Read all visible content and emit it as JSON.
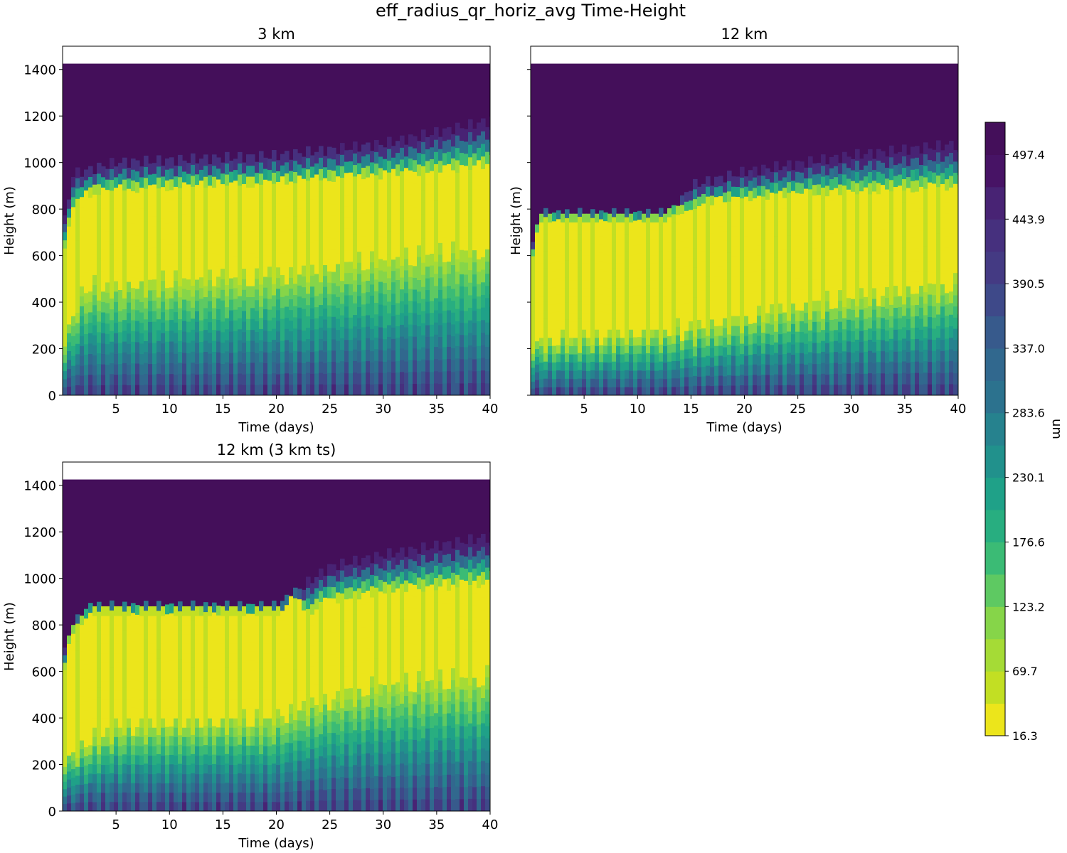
{
  "figure": {
    "suptitle": "eff_radius_qr_horiz_avg Time-Height"
  },
  "chart_data": [
    {
      "type": "heatmap",
      "title": "3 km",
      "xlabel": "Time (days)",
      "ylabel": "Height (m)",
      "xlim": [
        0,
        40
      ],
      "ylim": [
        0,
        1500
      ],
      "xticks": [
        5,
        10,
        15,
        20,
        25,
        30,
        35,
        40
      ],
      "yticks": [
        0,
        200,
        400,
        600,
        800,
        1000,
        1200,
        1400
      ],
      "show_ytick_labels": true,
      "show_xlabel": true,
      "data_top_m": 1425,
      "cloud_top_m": [
        [
          0,
          500
        ],
        [
          0.3,
          700
        ],
        [
          1,
          800
        ],
        [
          2,
          860
        ],
        [
          3,
          880
        ],
        [
          10,
          900
        ],
        [
          20,
          920
        ],
        [
          30,
          950
        ],
        [
          40,
          990
        ]
      ],
      "dry_top_m": [
        [
          0,
          700
        ],
        [
          1,
          950
        ],
        [
          5,
          1000
        ],
        [
          20,
          1030
        ],
        [
          30,
          1080
        ],
        [
          40,
          1180
        ]
      ],
      "moist_bottom_m": [
        [
          0,
          250
        ],
        [
          2,
          480
        ],
        [
          20,
          540
        ],
        [
          30,
          600
        ],
        [
          40,
          640
        ]
      ],
      "cycles": 37
    },
    {
      "type": "heatmap",
      "title": "12 km",
      "xlabel": "Time (days)",
      "ylabel": "Height (m)",
      "xlim": [
        0,
        40
      ],
      "ylim": [
        0,
        1500
      ],
      "xticks": [
        5,
        10,
        15,
        20,
        25,
        30,
        35,
        40
      ],
      "yticks": [
        0,
        200,
        400,
        600,
        800,
        1000,
        1200,
        1400
      ],
      "show_ytick_labels": false,
      "show_xlabel": true,
      "data_top_m": 1425,
      "cloud_top_m": [
        [
          0,
          450
        ],
        [
          0.3,
          680
        ],
        [
          1,
          760
        ],
        [
          12.9,
          760
        ],
        [
          13,
          790
        ],
        [
          15,
          800
        ],
        [
          16,
          830
        ],
        [
          25,
          870
        ],
        [
          40,
          900
        ]
      ],
      "dry_top_m": [
        [
          0,
          600
        ],
        [
          1,
          780
        ],
        [
          13,
          780
        ],
        [
          14,
          830
        ],
        [
          15,
          900
        ],
        [
          20,
          960
        ],
        [
          30,
          1030
        ],
        [
          40,
          1080
        ]
      ],
      "moist_bottom_m": [
        [
          0,
          250
        ],
        [
          10,
          280
        ],
        [
          17,
          320
        ],
        [
          25,
          400
        ],
        [
          40,
          500
        ]
      ],
      "cycles": 37
    },
    {
      "type": "heatmap",
      "title": "12 km (3 km ts)",
      "xlabel": "Time (days)",
      "ylabel": "Height (m)",
      "xlim": [
        0,
        40
      ],
      "ylim": [
        0,
        1500
      ],
      "xticks": [
        5,
        10,
        15,
        20,
        25,
        30,
        35,
        40
      ],
      "yticks": [
        0,
        200,
        400,
        600,
        800,
        1000,
        1200,
        1400
      ],
      "show_ytick_labels": true,
      "show_xlabel": true,
      "data_top_m": 1425,
      "cloud_top_m": [
        [
          0,
          450
        ],
        [
          0.3,
          700
        ],
        [
          1,
          780
        ],
        [
          2,
          830
        ],
        [
          2.5,
          860
        ],
        [
          20.9,
          860
        ],
        [
          21,
          900
        ],
        [
          22,
          910
        ],
        [
          23,
          840
        ],
        [
          24,
          900
        ],
        [
          30,
          950
        ],
        [
          40,
          990
        ]
      ],
      "dry_top_m": [
        [
          0,
          650
        ],
        [
          1,
          800
        ],
        [
          2.5,
          880
        ],
        [
          20,
          880
        ],
        [
          22,
          950
        ],
        [
          25,
          1050
        ],
        [
          30,
          1100
        ],
        [
          40,
          1180
        ]
      ],
      "moist_bottom_m": [
        [
          0,
          250
        ],
        [
          5,
          380
        ],
        [
          20,
          420
        ],
        [
          23,
          480
        ],
        [
          30,
          560
        ],
        [
          40,
          590
        ]
      ],
      "cycles": 37
    }
  ],
  "colorbar": {
    "label": "um",
    "vmin": 16.3,
    "vmax": 524.1,
    "levels": 19,
    "tick_values": [
      16.3,
      69.7,
      123.2,
      176.6,
      230.1,
      283.6,
      337.0,
      390.5,
      443.9,
      497.4
    ],
    "tick_labels": [
      "16.3",
      "69.7",
      "123.2",
      "176.6",
      "230.1",
      "283.6",
      "337.0",
      "390.5",
      "443.9",
      "497.4"
    ],
    "colors": [
      "#ece51b",
      "#c2df23",
      "#a5db36",
      "#86d549",
      "#5ec962",
      "#3bbb75",
      "#28ae80",
      "#1fa188",
      "#21918c",
      "#26828e",
      "#2c728e",
      "#31688e",
      "#375a8c",
      "#3e4989",
      "#443a83",
      "#46307e",
      "#482374",
      "#471365",
      "#440f5a"
    ]
  }
}
